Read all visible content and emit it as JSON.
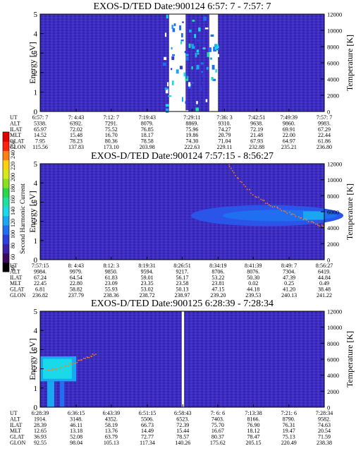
{
  "colorbar": {
    "label": "Second Harmonic Current",
    "ticks": [
      "40",
      "60",
      "80",
      "100",
      "120",
      "140",
      "160",
      "180",
      "200",
      "220",
      "240",
      "250"
    ],
    "colors": [
      "#000000",
      "#3b0a5c",
      "#3a1fa8",
      "#2a3fdc",
      "#1f6ff0",
      "#1aa7f2",
      "#1ad9e8",
      "#20e0a0",
      "#28d848",
      "#88e020",
      "#d8e818",
      "#ffd010",
      "#ff8010",
      "#ff2010",
      "#e00000"
    ],
    "background": "#3a2ec0"
  },
  "panels": [
    {
      "title": "EXOS-D/TED   Date:900124   6:57: 7 - 7:57: 7",
      "ylabel": "Energy [eV]",
      "y2label": "Temperature [K]",
      "ylim": [
        0,
        5
      ],
      "y2lim": [
        0,
        12000
      ],
      "yticks": [
        "0",
        "1",
        "2",
        "3",
        "4",
        "5"
      ],
      "y2ticks": [
        "0",
        "2000",
        "4000",
        "6000",
        "8000",
        "10000",
        "12000"
      ],
      "row_labels": [
        "UT",
        "ALT",
        "ILAT",
        "MLT",
        "GLAT",
        "GLON"
      ],
      "columns": [
        [
          "6:57: 7",
          "5338.",
          "65.97",
          "14.52",
          "7.95",
          "115.56"
        ],
        [
          "7: 4:43",
          "6392.",
          "72.02",
          "15.48",
          "78.23",
          "137.83"
        ],
        [
          "7:12: 7",
          "7291.",
          "75.52",
          "16.70",
          "80.36",
          "173.10"
        ],
        [
          "7:19:43",
          "8079.",
          "76.85",
          "18.17",
          "78.58",
          "203.98"
        ],
        [
          "7:29:11",
          "8869.",
          "75.96",
          "19.86",
          "74.30",
          "222.63"
        ],
        [
          "7:36: 3",
          "9310.",
          "74.27",
          "20.79",
          "71.04",
          "229.11"
        ],
        [
          "7:42:51",
          "9638.",
          "72.19",
          "21.48",
          "67.93",
          "232.88"
        ],
        [
          "7:49:39",
          "9860.",
          "69.91",
          "22.00",
          "64.97",
          "235.21"
        ],
        [
          "7:57: 7",
          "9983.",
          "67.29",
          "22.44",
          "61.86",
          "236.80"
        ]
      ]
    },
    {
      "title": "EXOS-D/TED   Date:900124   7:57:15 - 8:56:27",
      "ylabel": "Energy [eV]",
      "y2label": "Temperature [K]",
      "ylim": [
        0,
        5
      ],
      "y2lim": [
        0,
        12000
      ],
      "yticks": [
        "0",
        "1",
        "2",
        "3",
        "4",
        "5"
      ],
      "y2ticks": [
        "0",
        "2000",
        "4000",
        "6000",
        "8000",
        "10000",
        "12000"
      ],
      "row_labels": [
        "UT",
        "ALT",
        "ILAT",
        "MLT",
        "GLAT",
        "GLON"
      ],
      "columns": [
        [
          "7:57:15",
          "9984.",
          "67.24",
          "22.45",
          "6.81",
          "236.82"
        ],
        [
          "8: 4:43",
          "9979.",
          "64.54",
          "22.80",
          "58.82",
          "237.79"
        ],
        [
          "8:12: 3",
          "9850.",
          "61.83",
          "23.09",
          "55.93",
          "238.36"
        ],
        [
          "8:19:31",
          "9594.",
          "59.01",
          "23.35",
          "53.02",
          "238.72"
        ],
        [
          "8:26:51",
          "9217.",
          "56.17",
          "23.58",
          "50.13",
          "238.97"
        ],
        [
          "8:34:19",
          "8706.",
          "53.22",
          "23.81",
          "47.15",
          "239.20"
        ],
        [
          "8:41:39",
          "8076.",
          "50.30",
          "0.02",
          "44.18",
          "239.53"
        ],
        [
          "8:49: 7",
          "7304.",
          "47.39",
          "0.25",
          "41.20",
          "240.13"
        ],
        [
          "8:56:27",
          "6419.",
          "44.84",
          "0.49",
          "38.48",
          "241.22"
        ]
      ]
    },
    {
      "title": "EXOS-D/TED   Date:900125   6:28:39 - 7:28:34",
      "ylabel": "Energy [eV]",
      "y2label": "Temperature [K]",
      "ylim": [
        0,
        5
      ],
      "y2lim": [
        0,
        12000
      ],
      "yticks": [
        "0",
        "1",
        "2",
        "3",
        "4",
        "5"
      ],
      "y2ticks": [
        "0",
        "2000",
        "4000",
        "6000",
        "8000",
        "10000",
        "12000"
      ],
      "row_labels": [
        "UT",
        "ALT",
        "ILAT",
        "MLT",
        "GLAT",
        "GLON"
      ],
      "columns": [
        [
          "6:28:39",
          "1914.",
          "28.39",
          "12.65",
          "36.93",
          "92.55"
        ],
        [
          "6:36:15",
          "3148.",
          "46.11",
          "13.18",
          "52.08",
          "98.04"
        ],
        [
          "6:43:39",
          "4352.",
          "58.19",
          "13.76",
          "63.79",
          "105.13"
        ],
        [
          "6:51:15",
          "5506.",
          "66.73",
          "14.49",
          "72.77",
          "117.34"
        ],
        [
          "6:58:43",
          "6523.",
          "72.39",
          "15.44",
          "78.57",
          "140.26"
        ],
        [
          "7: 6: 6",
          "7403.",
          "75.70",
          "16.67",
          "80.37",
          "175.62"
        ],
        [
          "7:13:38",
          "8166.",
          "76.90",
          "18.12",
          "78.47",
          "205.15"
        ],
        [
          "7:21: 6",
          "8790.",
          "76.31",
          "19.47",
          "75.13",
          "220.49"
        ],
        [
          "7:28:34",
          "9582.",
          "74.63",
          "20.54",
          "71.59",
          "238.38"
        ]
      ]
    }
  ],
  "chart_data": [
    {
      "type": "heatmap",
      "title": "EXOS-D/TED   Date:900124   6:57: 7 - 7:57: 7",
      "xlabel": "UT",
      "ylabel": "Energy [eV]",
      "y2label": "Temperature [K]",
      "x": [
        "6:57: 7",
        "7: 4:43",
        "7:12: 7",
        "7:19:43",
        "7:29:11",
        "7:36: 3",
        "7:42:51",
        "7:49:39",
        "7:57: 7"
      ],
      "ylim": [
        0,
        5
      ],
      "y2lim": [
        0,
        12000
      ],
      "features": [
        {
          "kind": "data-gap",
          "x_start": "7:24:20",
          "x_end": "7:27:50"
        },
        {
          "kind": "data-gap",
          "x_start": "7:32:50",
          "x_end": "7:34:40"
        },
        {
          "kind": "scattered-cyan-dots",
          "x_start": "7:23:00",
          "x_end": "7:34:40",
          "y_range": [
            0,
            5
          ]
        }
      ]
    },
    {
      "type": "heatmap",
      "title": "EXOS-D/TED   Date:900124   7:57:15 - 8:56:27",
      "xlabel": "UT",
      "ylabel": "Energy [eV]",
      "y2label": "Temperature [K]",
      "x": [
        "7:57:15",
        "8: 4:43",
        "8:12: 3",
        "8:19:31",
        "8:26:51",
        "8:34:19",
        "8:41:39",
        "8:49: 7",
        "8:56:27"
      ],
      "ylim": [
        0,
        5
      ],
      "y2lim": [
        0,
        12000
      ],
      "features": [
        {
          "kind": "enhancement-band",
          "x_start": "8:30:00",
          "x_end": "8:56:27",
          "y_center": 2.3,
          "y_halfwidth": 0.55
        },
        {
          "kind": "temperature-trace",
          "points": [
            [
              "8:36:30",
              11900
            ],
            [
              "8:39:00",
              9800
            ],
            [
              "8:42:00",
              8000
            ],
            [
              "8:45:00",
              6900
            ],
            [
              "8:48:00",
              6100
            ],
            [
              "8:51:00",
              5400
            ],
            [
              "8:54:00",
              4700
            ],
            [
              "8:56:27",
              4100
            ]
          ]
        }
      ]
    },
    {
      "type": "heatmap",
      "title": "EXOS-D/TED   Date:900125   6:28:39 - 7:28:34",
      "xlabel": "UT",
      "ylabel": "Energy [eV]",
      "y2label": "Temperature [K]",
      "x": [
        "6:28:39",
        "6:36:15",
        "6:43:39",
        "6:51:15",
        "6:58:43",
        "7: 6: 6",
        "7:13:38",
        "7:21: 6",
        "7:28:34"
      ],
      "ylim": [
        0,
        5
      ],
      "y2lim": [
        0,
        12000
      ],
      "features": [
        {
          "kind": "data-gap",
          "x_start": "6:58:30",
          "x_end": "6:59:00"
        },
        {
          "kind": "enhancement-band",
          "x_start": "6:28:39",
          "x_end": "6:36:15",
          "y_center": 2.0,
          "y_halfwidth": 0.65
        },
        {
          "kind": "temperature-trace",
          "points": [
            [
              "6:30:00",
              4500
            ],
            [
              "6:33:00",
              5000
            ],
            [
              "6:36:00",
              5600
            ],
            [
              "6:38:30",
              6200
            ],
            [
              "6:40:30",
              6700
            ]
          ]
        }
      ]
    }
  ]
}
